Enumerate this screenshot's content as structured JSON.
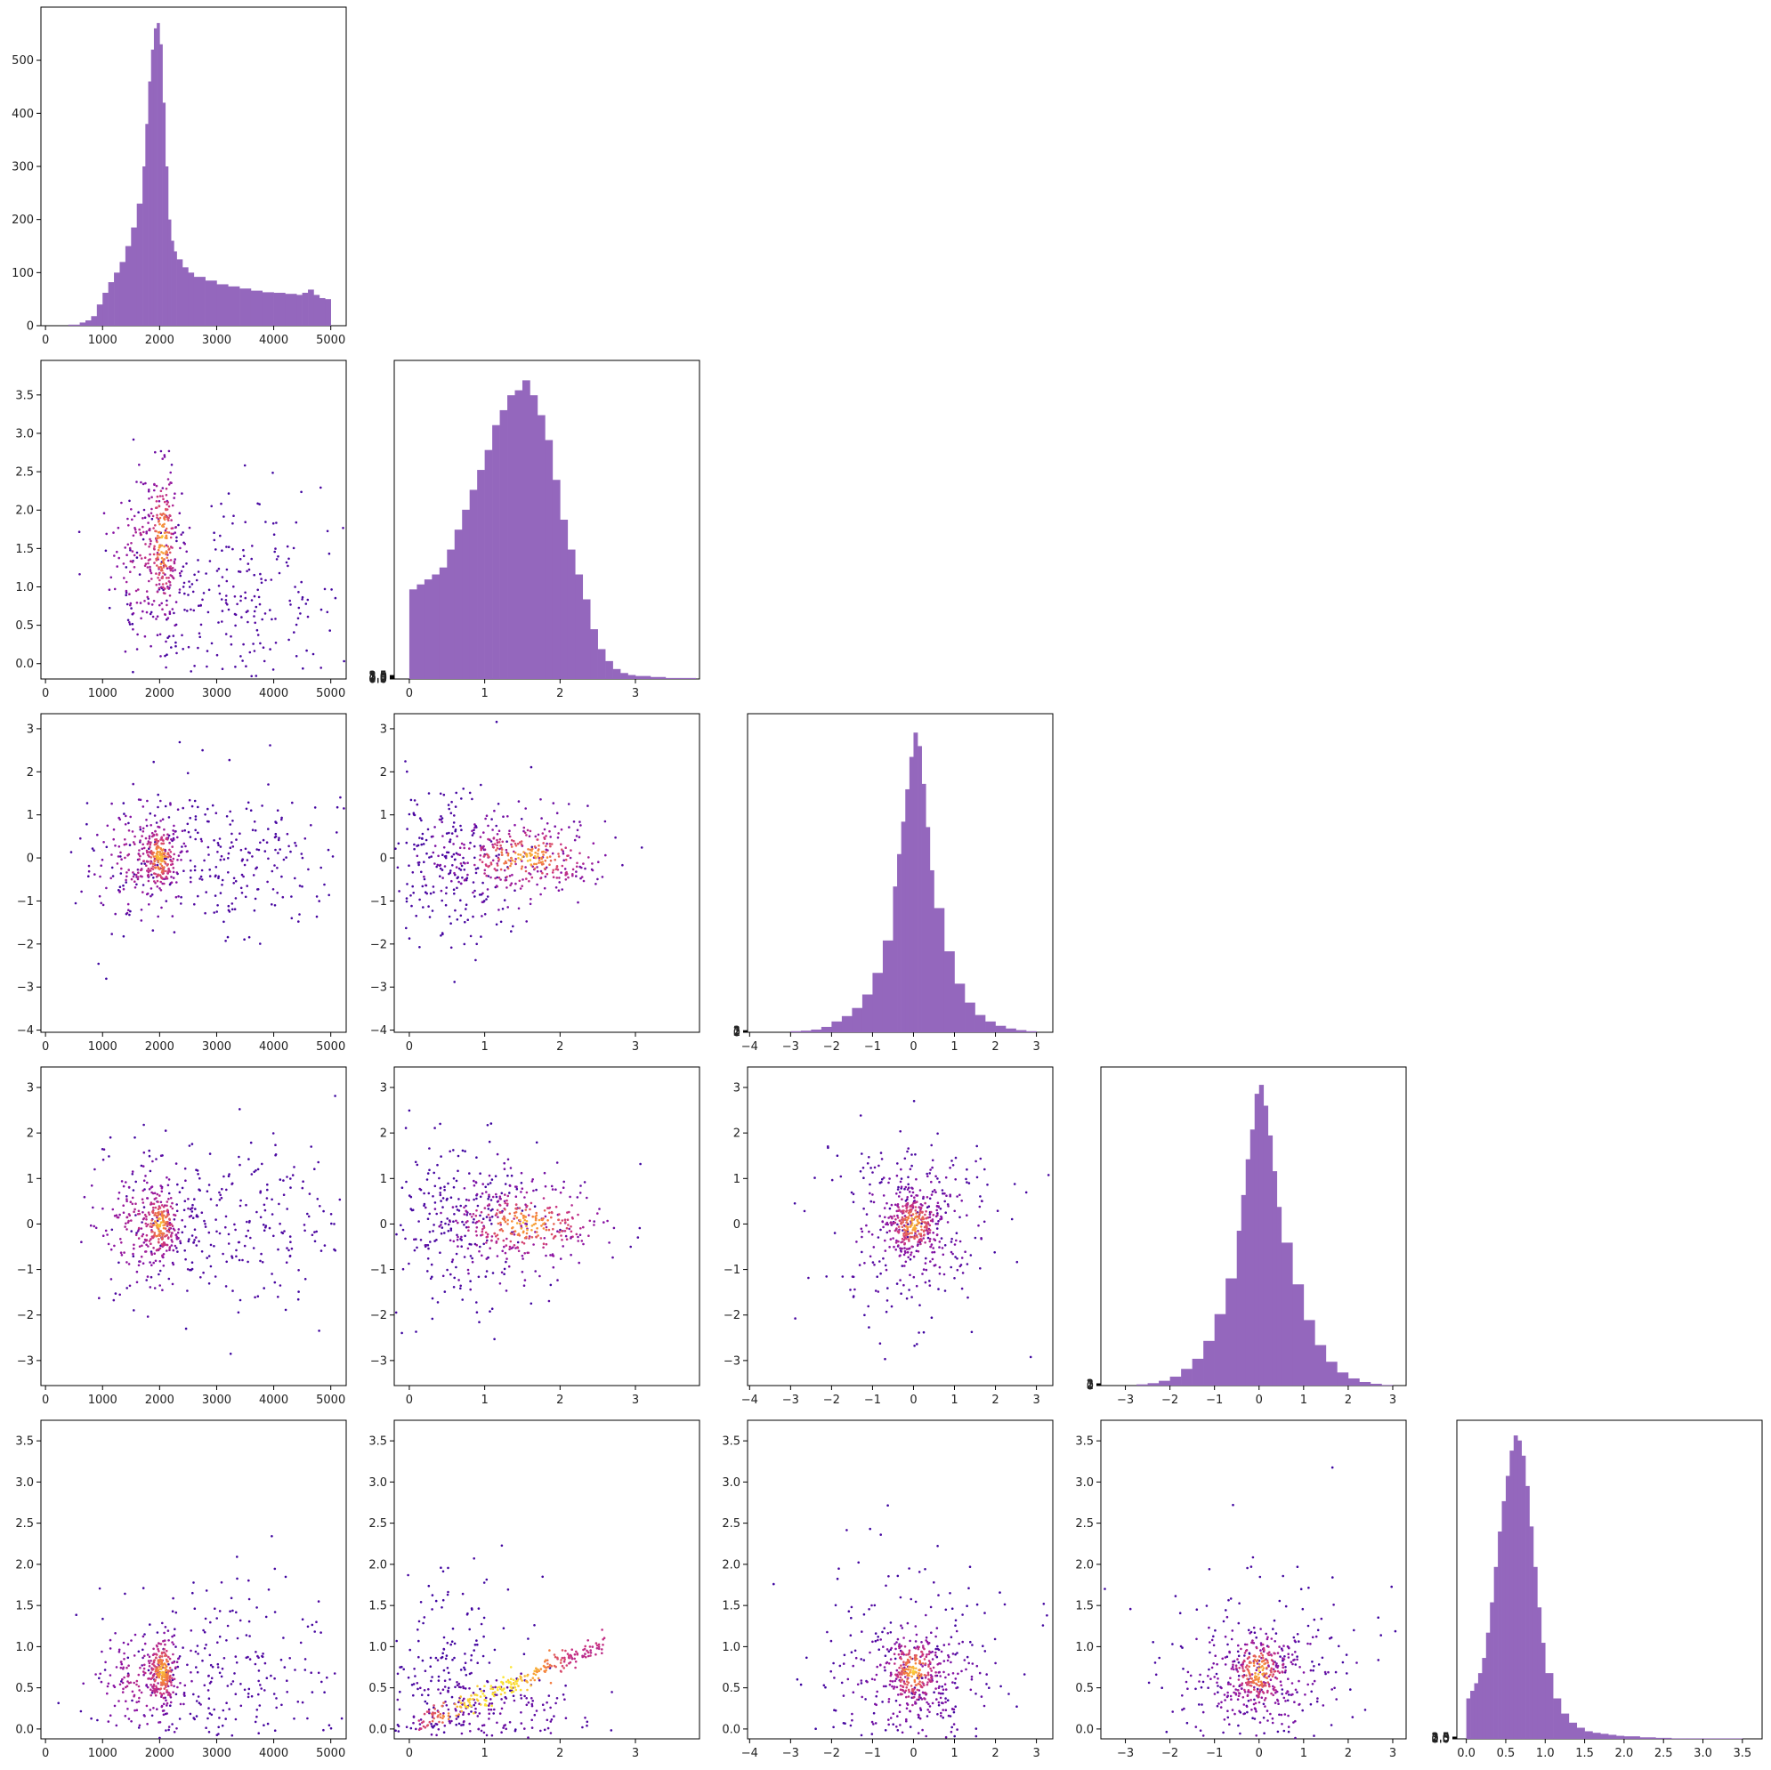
{
  "figure": {
    "type": "corner-plot",
    "colors": {
      "hist": "#9467bd",
      "scatter_low": "#3d05a0",
      "scatter_mid": "#cc3580",
      "scatter_high": "#fbe534",
      "axis": "#000000"
    }
  },
  "variables": [
    {
      "ticks": [
        0,
        1000,
        2000,
        3000,
        4000,
        5000
      ],
      "range": [
        -80,
        5270
      ]
    },
    {
      "ticks": [
        0,
        1,
        2,
        3
      ],
      "range": [
        -0.2,
        3.85
      ]
    },
    {
      "ticks": [
        -4,
        -3,
        -2,
        -1,
        0,
        1,
        2,
        3
      ],
      "range": [
        -4.05,
        3.4
      ]
    },
    {
      "ticks": [
        -3,
        -2,
        -1,
        0,
        1,
        2,
        3
      ],
      "range": [
        -3.55,
        3.3
      ]
    },
    {
      "ticks": [
        0.0,
        0.5,
        1.0,
        1.5,
        2.0,
        2.5,
        3.0,
        3.5
      ],
      "range": [
        -0.12,
        3.75
      ]
    }
  ],
  "y_axes": [
    {
      "ticks": [
        0,
        100,
        200,
        300,
        400,
        500
      ],
      "range": [
        0,
        600
      ]
    },
    {
      "ticks": [
        0.0,
        0.5,
        1.0,
        1.5,
        2.0,
        2.5,
        3.0,
        3.5
      ],
      "range": [
        -0.2,
        3.95
      ]
    },
    {
      "ticks": [
        -4,
        -3,
        -2,
        -1,
        0,
        1,
        2,
        3
      ],
      "range": [
        -4.05,
        3.35
      ]
    },
    {
      "ticks": [
        -3,
        -2,
        -1,
        0,
        1,
        2,
        3
      ],
      "range": [
        -3.55,
        3.45
      ]
    },
    {
      "ticks": [
        0.0,
        0.5,
        1.0,
        1.5,
        2.0,
        2.5,
        3.0,
        3.5
      ],
      "range": [
        -0.12,
        3.75
      ]
    }
  ],
  "chart_data": [
    {
      "type": "bar",
      "panel": "hist-0",
      "x": [
        0,
        200,
        400,
        600,
        700,
        800,
        900,
        1000,
        1100,
        1200,
        1300,
        1400,
        1500,
        1600,
        1700,
        1750,
        1800,
        1850,
        1900,
        1950,
        2000,
        2050,
        2100,
        2150,
        2200,
        2250,
        2300,
        2400,
        2500,
        2600,
        2800,
        3000,
        3200,
        3400,
        3600,
        3800,
        4000,
        4200,
        4400,
        4500,
        4600,
        4700,
        4800,
        4900,
        5000
      ],
      "values": [
        0,
        0,
        2,
        6,
        10,
        18,
        40,
        62,
        82,
        100,
        120,
        150,
        185,
        230,
        300,
        380,
        460,
        520,
        560,
        570,
        530,
        420,
        300,
        200,
        160,
        140,
        125,
        110,
        100,
        92,
        85,
        78,
        74,
        70,
        66,
        63,
        62,
        60,
        58,
        62,
        68,
        58,
        52,
        50,
        48
      ],
      "xlim": [
        -80,
        5270
      ],
      "ylim": [
        0,
        600
      ]
    },
    {
      "type": "bar",
      "panel": "hist-1",
      "x": [
        0.0,
        0.1,
        0.2,
        0.3,
        0.4,
        0.5,
        0.6,
        0.7,
        0.8,
        0.9,
        1.0,
        1.1,
        1.2,
        1.3,
        1.4,
        1.5,
        1.6,
        1.7,
        1.8,
        1.9,
        2.0,
        2.1,
        2.2,
        2.3,
        2.4,
        2.5,
        2.6,
        2.7,
        2.8,
        2.9,
        3.0,
        3.2,
        3.4,
        3.6,
        3.8
      ],
      "values": [
        90,
        95,
        100,
        105,
        112,
        130,
        150,
        170,
        190,
        210,
        230,
        255,
        270,
        285,
        290,
        300,
        285,
        265,
        240,
        200,
        160,
        130,
        105,
        80,
        50,
        30,
        18,
        10,
        6,
        4,
        3,
        2,
        1,
        1,
        0
      ],
      "xlim": [
        -0.2,
        3.85
      ],
      "ylim": [
        0,
        320
      ]
    },
    {
      "type": "bar",
      "panel": "hist-2",
      "x": [
        -4.0,
        -3.5,
        -3.0,
        -2.75,
        -2.5,
        -2.25,
        -2.0,
        -1.75,
        -1.5,
        -1.25,
        -1.0,
        -0.75,
        -0.5,
        -0.4,
        -0.3,
        -0.2,
        -0.1,
        0.0,
        0.1,
        0.2,
        0.3,
        0.4,
        0.5,
        0.75,
        1.0,
        1.25,
        1.5,
        1.75,
        2.0,
        2.25,
        2.5,
        2.75,
        3.0
      ],
      "values": [
        0,
        0,
        2,
        3,
        5,
        10,
        20,
        30,
        45,
        70,
        110,
        170,
        270,
        330,
        390,
        450,
        510,
        555,
        530,
        460,
        380,
        300,
        230,
        150,
        90,
        55,
        32,
        20,
        12,
        7,
        4,
        2,
        0
      ],
      "xlim": [
        -4.05,
        3.4
      ],
      "ylim": [
        0,
        590
      ]
    },
    {
      "type": "bar",
      "panel": "hist-3",
      "x": [
        -3.0,
        -2.75,
        -2.5,
        -2.25,
        -2.0,
        -1.75,
        -1.5,
        -1.25,
        -1.0,
        -0.75,
        -0.5,
        -0.4,
        -0.3,
        -0.2,
        -0.1,
        0.0,
        0.1,
        0.2,
        0.3,
        0.4,
        0.5,
        0.75,
        1.0,
        1.25,
        1.5,
        1.75,
        2.0,
        2.25,
        2.5,
        2.75,
        3.0
      ],
      "values": [
        0,
        2,
        4,
        8,
        15,
        28,
        45,
        75,
        120,
        180,
        260,
        320,
        380,
        430,
        490,
        505,
        470,
        420,
        360,
        300,
        240,
        170,
        110,
        68,
        40,
        22,
        12,
        6,
        3,
        1,
        0
      ],
      "xlim": [
        -3.55,
        3.3
      ],
      "ylim": [
        0,
        535
      ]
    },
    {
      "type": "bar",
      "panel": "hist-4",
      "x": [
        0.0,
        0.05,
        0.1,
        0.15,
        0.2,
        0.25,
        0.3,
        0.35,
        0.4,
        0.45,
        0.5,
        0.55,
        0.6,
        0.65,
        0.7,
        0.75,
        0.8,
        0.85,
        0.9,
        0.95,
        1.0,
        1.1,
        1.2,
        1.3,
        1.4,
        1.5,
        1.6,
        1.7,
        1.8,
        1.9,
        2.0,
        2.2,
        2.4,
        2.6,
        2.8,
        3.0,
        3.5
      ],
      "values": [
        80,
        95,
        110,
        130,
        160,
        210,
        270,
        340,
        410,
        470,
        520,
        570,
        600,
        590,
        560,
        500,
        420,
        340,
        260,
        190,
        130,
        80,
        50,
        32,
        22,
        15,
        12,
        10,
        8,
        6,
        5,
        3,
        2,
        1,
        1,
        1,
        0
      ],
      "xlim": [
        -0.12,
        3.75
      ],
      "ylim": [
        0,
        630
      ]
    },
    {
      "type": "scatter",
      "panel": "scatter-1-0",
      "clusters": [
        {
          "cx": 2050,
          "cy": 1.6,
          "sx": 120,
          "sy": 0.45,
          "n": 200,
          "heat": 0.95
        },
        {
          "cx": 1750,
          "cy": 1.4,
          "sx": 380,
          "sy": 0.55,
          "n": 160,
          "heat": 0.55
        },
        {
          "cx": 3200,
          "cy": 0.9,
          "sx": 1100,
          "sy": 0.7,
          "n": 260,
          "heat": 0.1
        }
      ],
      "xlim": [
        -80,
        5270
      ],
      "ylim": [
        -0.2,
        3.95
      ]
    },
    {
      "type": "scatter",
      "panel": "scatter-2-0",
      "clusters": [
        {
          "cx": 2000,
          "cy": 0.0,
          "sx": 150,
          "sy": 0.35,
          "n": 200,
          "heat": 0.95
        },
        {
          "cx": 1700,
          "cy": 0.0,
          "sx": 450,
          "sy": 0.7,
          "n": 160,
          "heat": 0.55
        },
        {
          "cx": 3200,
          "cy": 0.0,
          "sx": 1100,
          "sy": 0.9,
          "n": 260,
          "heat": 0.1
        }
      ],
      "xlim": [
        -80,
        5270
      ],
      "ylim": [
        -4.05,
        3.35
      ]
    },
    {
      "type": "scatter",
      "panel": "scatter-2-1",
      "clusters": [
        {
          "cx": 1.55,
          "cy": 0.0,
          "sx": 0.45,
          "sy": 0.35,
          "n": 220,
          "heat": 0.95
        },
        {
          "cx": 1.3,
          "cy": 0.0,
          "sx": 0.6,
          "sy": 0.65,
          "n": 160,
          "heat": 0.5
        },
        {
          "cx": 0.6,
          "cy": 0.0,
          "sx": 0.5,
          "sy": 1.0,
          "n": 220,
          "heat": 0.08
        }
      ],
      "xlim": [
        -0.2,
        3.85
      ],
      "ylim": [
        -4.05,
        3.35
      ]
    },
    {
      "type": "scatter",
      "panel": "scatter-3-0",
      "clusters": [
        {
          "cx": 2000,
          "cy": 0.0,
          "sx": 150,
          "sy": 0.35,
          "n": 200,
          "heat": 0.95
        },
        {
          "cx": 1700,
          "cy": 0.0,
          "sx": 450,
          "sy": 0.7,
          "n": 160,
          "heat": 0.55
        },
        {
          "cx": 3200,
          "cy": 0.0,
          "sx": 1100,
          "sy": 0.9,
          "n": 260,
          "heat": 0.1
        }
      ],
      "xlim": [
        -80,
        5270
      ],
      "ylim": [
        -3.55,
        3.45
      ]
    },
    {
      "type": "scatter",
      "panel": "scatter-3-1",
      "clusters": [
        {
          "cx": 1.55,
          "cy": 0.0,
          "sx": 0.45,
          "sy": 0.35,
          "n": 220,
          "heat": 0.95
        },
        {
          "cx": 1.3,
          "cy": 0.0,
          "sx": 0.6,
          "sy": 0.65,
          "n": 160,
          "heat": 0.5
        },
        {
          "cx": 0.6,
          "cy": 0.0,
          "sx": 0.5,
          "sy": 1.0,
          "n": 220,
          "heat": 0.08
        }
      ],
      "xlim": [
        -0.2,
        3.85
      ],
      "ylim": [
        -3.55,
        3.45
      ]
    },
    {
      "type": "scatter",
      "panel": "scatter-3-2",
      "clusters": [
        {
          "cx": 0.0,
          "cy": 0.0,
          "sx": 0.3,
          "sy": 0.3,
          "n": 230,
          "heat": 0.95
        },
        {
          "cx": 0.0,
          "cy": 0.0,
          "sx": 0.75,
          "sy": 0.7,
          "n": 200,
          "heat": 0.45
        },
        {
          "cx": 0.0,
          "cy": 0.0,
          "sx": 1.3,
          "sy": 1.2,
          "n": 170,
          "heat": 0.1
        }
      ],
      "xlim": [
        -4.05,
        3.4
      ],
      "ylim": [
        -3.55,
        3.45
      ]
    },
    {
      "type": "scatter",
      "panel": "scatter-4-0",
      "clusters": [
        {
          "cx": 2050,
          "cy": 0.7,
          "sx": 130,
          "sy": 0.2,
          "n": 200,
          "heat": 0.95
        },
        {
          "cx": 1700,
          "cy": 0.6,
          "sx": 450,
          "sy": 0.3,
          "n": 160,
          "heat": 0.55
        },
        {
          "cx": 3200,
          "cy": 0.6,
          "sx": 1100,
          "sy": 0.6,
          "n": 260,
          "heat": 0.1
        }
      ],
      "xlim": [
        -80,
        5270
      ],
      "ylim": [
        -0.12,
        3.75
      ]
    },
    {
      "type": "scatter",
      "panel": "scatter-4-1",
      "clusters": [
        {
          "cx": 0.9,
          "cy": 0.2,
          "sx": 0.7,
          "sy": 0.25,
          "n": 200,
          "heat": 0.25
        },
        {
          "cx": 0.5,
          "cy": 0.7,
          "sx": 0.5,
          "sy": 0.7,
          "n": 180,
          "heat": 0.05
        }
      ],
      "band": {
        "x0": 0.1,
        "y0": 0.05,
        "x1": 2.6,
        "y1": 1.05,
        "n": 240,
        "spread": 0.07
      },
      "xlim": [
        -0.2,
        3.85
      ],
      "ylim": [
        -0.12,
        3.75
      ]
    },
    {
      "type": "scatter",
      "panel": "scatter-4-2",
      "clusters": [
        {
          "cx": 0.0,
          "cy": 0.7,
          "sx": 0.3,
          "sy": 0.2,
          "n": 220,
          "heat": 0.95
        },
        {
          "cx": 0.0,
          "cy": 0.6,
          "sx": 0.8,
          "sy": 0.35,
          "n": 200,
          "heat": 0.45
        },
        {
          "cx": 0.0,
          "cy": 0.7,
          "sx": 1.3,
          "sy": 0.7,
          "n": 170,
          "heat": 0.08
        }
      ],
      "xlim": [
        -4.05,
        3.4
      ],
      "ylim": [
        -0.12,
        3.75
      ]
    },
    {
      "type": "scatter",
      "panel": "scatter-4-3",
      "clusters": [
        {
          "cx": 0.0,
          "cy": 0.7,
          "sx": 0.3,
          "sy": 0.2,
          "n": 220,
          "heat": 0.95
        },
        {
          "cx": 0.0,
          "cy": 0.6,
          "sx": 0.8,
          "sy": 0.35,
          "n": 200,
          "heat": 0.45
        },
        {
          "cx": 0.0,
          "cy": 0.7,
          "sx": 1.2,
          "sy": 0.7,
          "n": 170,
          "heat": 0.08
        }
      ],
      "xlim": [
        -3.55,
        3.3
      ],
      "ylim": [
        -0.12,
        3.75
      ]
    }
  ]
}
